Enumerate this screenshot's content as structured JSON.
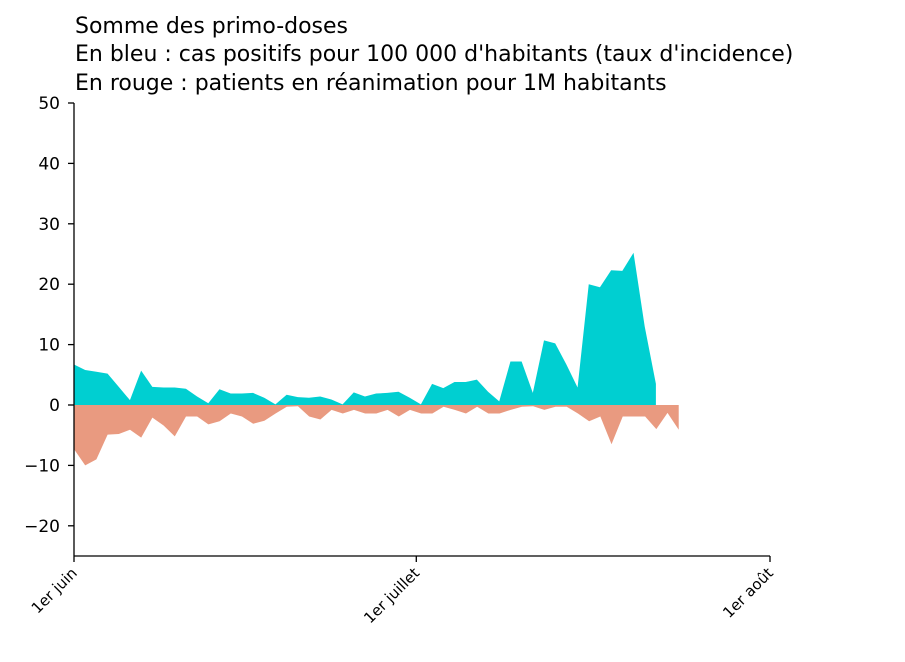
{
  "chart_data": {
    "type": "area",
    "title_lines": [
      "Somme des primo-doses",
      "En bleu : cas positifs pour 100 000 d'habitants (taux d'incidence)",
      "En rouge : patients en réanimation pour 1M habitants"
    ],
    "x_start": "2021-06-01",
    "x_end": "2021-08-01",
    "xlim": [
      "2021-06-01",
      "2021-08-01"
    ],
    "ylim": [
      -25,
      50
    ],
    "yticks": [
      -20,
      -10,
      0,
      10,
      20,
      30,
      40,
      50
    ],
    "xticks": [
      {
        "date": "2021-06-01",
        "label": "1er juin"
      },
      {
        "date": "2021-07-01",
        "label": "1er juillet"
      },
      {
        "date": "2021-08-01",
        "label": "1er août"
      }
    ],
    "grid": false,
    "series": [
      {
        "color": "#00cfd1",
        "values": [
          6.7,
          5.8,
          5.5,
          5.2,
          3.0,
          0.8,
          5.7,
          3.0,
          2.9,
          2.9,
          2.7,
          1.4,
          0.3,
          2.6,
          1.9,
          1.9,
          2.0,
          1.2,
          0.1,
          1.7,
          1.3,
          1.2,
          1.4,
          0.9,
          0.1,
          2.1,
          1.4,
          1.9,
          2.0,
          2.2,
          1.2,
          0.1,
          3.5,
          2.8,
          3.8,
          3.8,
          4.2,
          2.2,
          0.6,
          7.2,
          7.2,
          2.0,
          10.7,
          10.2,
          6.7,
          2.9,
          20.0,
          19.5,
          22.3,
          22.2,
          25.2,
          13.0,
          3.5
        ]
      },
      {
        "color": "#e99a80",
        "values": [
          -7.3,
          -10.0,
          -9.0,
          -4.9,
          -4.8,
          -4.1,
          -5.4,
          -2.1,
          -3.4,
          -5.2,
          -1.9,
          -1.9,
          -3.2,
          -2.7,
          -1.4,
          -1.9,
          -3.1,
          -2.6,
          -1.4,
          -0.3,
          -0.2,
          -1.9,
          -2.4,
          -0.8,
          -1.4,
          -0.8,
          -1.4,
          -1.4,
          -0.8,
          -1.9,
          -0.8,
          -1.4,
          -1.4,
          -0.3,
          -0.8,
          -1.4,
          -0.3,
          -1.4,
          -1.4,
          -0.8,
          -0.3,
          -0.2,
          -0.8,
          -0.3,
          -0.3,
          -1.4,
          -2.7,
          -1.9,
          -6.5,
          -1.9,
          -1.9,
          -1.9,
          -4.0,
          -1.3,
          -4.1
        ]
      }
    ]
  }
}
